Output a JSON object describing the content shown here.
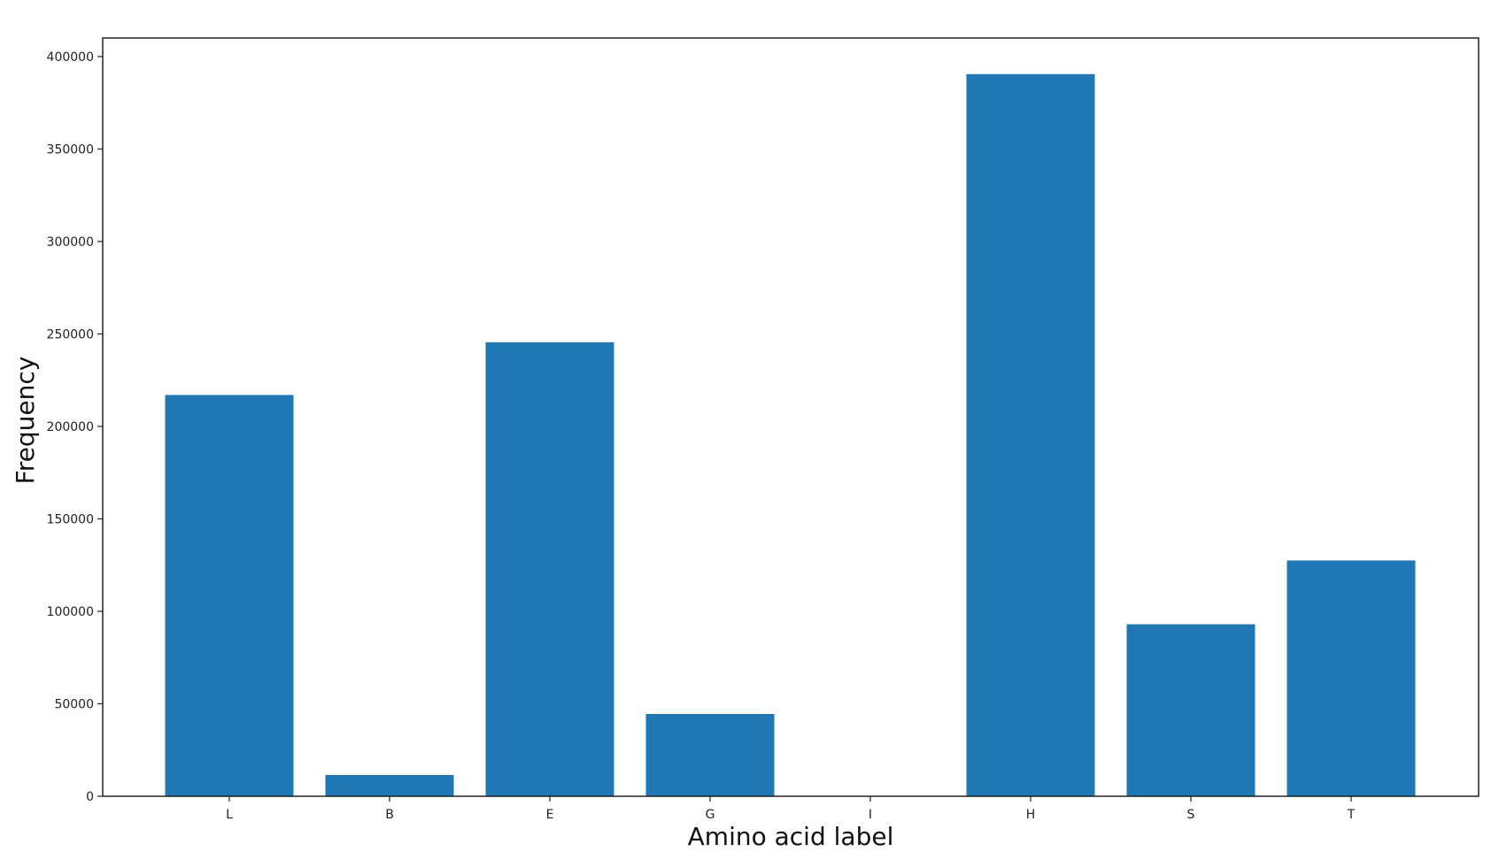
{
  "chart_data": {
    "type": "bar",
    "title": "",
    "xlabel": "Amino acid label",
    "ylabel": "Frequency",
    "categories": [
      "L",
      "B",
      "E",
      "G",
      "I",
      "H",
      "S",
      "T"
    ],
    "values": [
      217000,
      11500,
      245500,
      44500,
      0,
      390500,
      93000,
      127500
    ],
    "ylim": [
      0,
      410000
    ],
    "yticks": [
      0,
      50000,
      100000,
      150000,
      200000,
      250000,
      300000,
      350000,
      400000
    ],
    "ytick_labels": [
      "0",
      "50000",
      "100000",
      "150000",
      "200000",
      "250000",
      "300000",
      "350000",
      "400000"
    ],
    "bar_color": "#1f77b4",
    "grid": false,
    "legend": "none"
  }
}
